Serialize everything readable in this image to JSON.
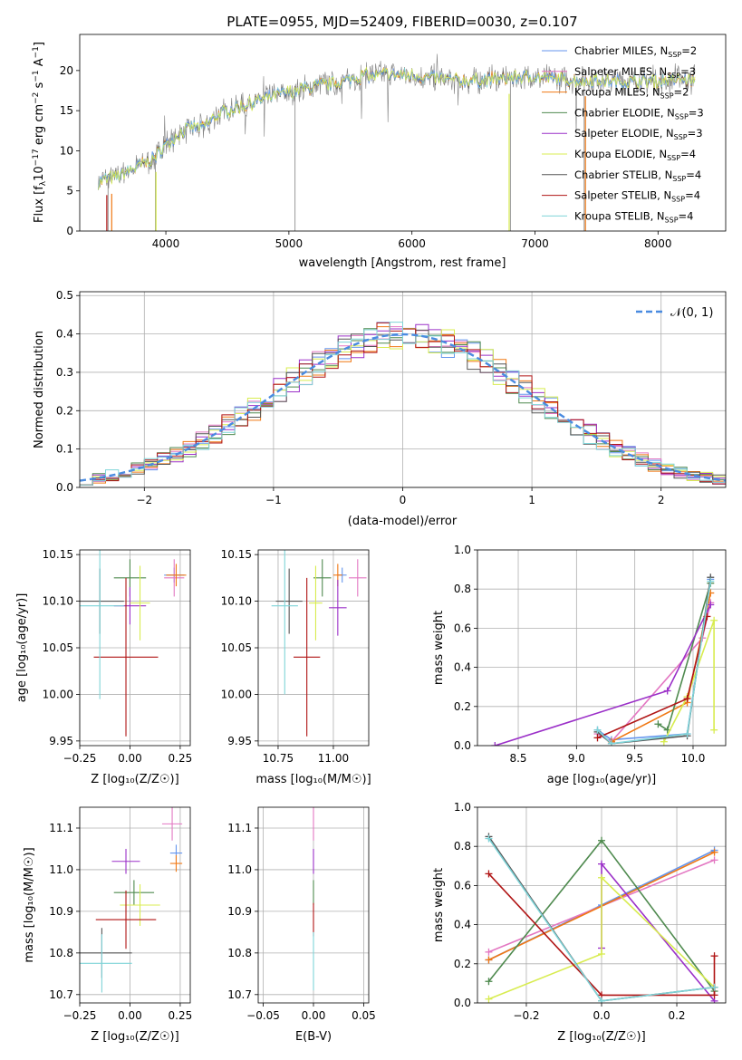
{
  "figure_title": "PLATE=0955, MJD=52409, FIBERID=0030, z=0.107",
  "colors": {
    "Chabrier MILES": "#6495ed",
    "Salpeter MILES": "#e377c2",
    "Kroupa MILES": "#f07814",
    "Chabrier ELODIE": "#4f8a4f",
    "Salpeter ELODIE": "#9b30c8",
    "Kroupa ELODIE": "#d8ec50",
    "Chabrier STELIB": "#555555",
    "Salpeter STELIB": "#b01515",
    "Kroupa STELIB": "#7fd4d8",
    "normal": "#4a8be0",
    "grid": "#b0b0b0",
    "spectrum_gray": "#808080"
  },
  "panels": {
    "spectrum": {
      "xlabel": "wavelength [Angstrom, rest frame]",
      "ylabel_parts": [
        "Flux [f",
        "λ",
        "10",
        "−17",
        " erg cm",
        "−2",
        " s",
        "−1",
        " A",
        "−1",
        "]"
      ],
      "xticks": [
        "4000",
        "5000",
        "6000",
        "7000",
        "8000"
      ],
      "yticks": [
        "0",
        "5",
        "10",
        "15",
        "20"
      ]
    },
    "hist": {
      "xlabel": "(data-model)/error",
      "ylabel": "Normed distribution",
      "xticks": [
        "−2",
        "−1",
        "0",
        "1",
        "2"
      ],
      "yticks": [
        "0.0",
        "0.1",
        "0.2",
        "0.3",
        "0.4",
        "0.5"
      ],
      "legend_label": "𝒩(0, 1)"
    },
    "age_z": {
      "xlabel": "Z [log₁₀(Z/Z☉)]",
      "ylabel": "age  [log₁₀(age/yr)]",
      "xticks": [
        "−0.25",
        "0.00",
        "0.25"
      ],
      "yticks": [
        "9.95",
        "10.00",
        "10.05",
        "10.10",
        "10.15"
      ]
    },
    "age_mass": {
      "xlabel": "mass [log₁₀(M/M☉)]",
      "xticks": [
        "10.75",
        "11.00"
      ],
      "yticks": [
        "9.95",
        "10.00",
        "10.05",
        "10.10",
        "10.15"
      ]
    },
    "mw_age": {
      "xlabel": "age  [log₁₀(age/yr)]",
      "ylabel": "mass weight",
      "xticks": [
        "8.5",
        "9.0",
        "9.5",
        "10.0"
      ],
      "yticks": [
        "0.0",
        "0.2",
        "0.4",
        "0.6",
        "0.8",
        "1.0"
      ]
    },
    "mass_z": {
      "xlabel": "Z [log₁₀(Z/Z☉)]",
      "ylabel": "mass [log₁₀(M/M☉)]",
      "xticks": [
        "−0.25",
        "0.00",
        "0.25"
      ],
      "yticks": [
        "10.7",
        "10.8",
        "10.9",
        "11.0",
        "11.1"
      ]
    },
    "mass_ebv": {
      "xlabel": "E(B-V)",
      "xticks": [
        "−0.05",
        "0.00",
        "0.05"
      ],
      "yticks": [
        "10.7",
        "10.8",
        "10.9",
        "11.0",
        "11.1"
      ]
    },
    "mw_z": {
      "xlabel": "Z [log₁₀(Z/Z☉)]",
      "ylabel": "mass weight",
      "xticks": [
        "−0.2",
        "0.0",
        "0.2"
      ],
      "yticks": [
        "0.0",
        "0.2",
        "0.4",
        "0.6",
        "0.8",
        "1.0"
      ]
    }
  },
  "chart_data": [
    {
      "type": "line",
      "title": "PLATE=0955, MJD=52409, FIBERID=0030, z=0.107",
      "xlabel": "wavelength [Angstrom, rest frame]",
      "ylabel": "Flux [fλ 10^-17 erg cm^-2 s^-1 A^-1]",
      "xlim": [
        3300,
        8550
      ],
      "ylim": [
        0,
        24.5
      ],
      "grid": false,
      "legend_position": "upper-right",
      "spectrum_shape": {
        "wavelength": [
          3450,
          3600,
          3700,
          3800,
          3900,
          4000,
          4100,
          4200,
          4300,
          4400,
          4500,
          4600,
          4800,
          5000,
          5200,
          5400,
          5600,
          5800,
          6000,
          6200,
          6400,
          6600,
          6800,
          7000,
          7200,
          7400,
          7600,
          7800,
          8000,
          8200,
          8300
        ],
        "flux": [
          6.2,
          6.8,
          7.5,
          8.2,
          9.0,
          10.8,
          12.0,
          13.0,
          12.8,
          14.2,
          15.0,
          15.5,
          16.5,
          17.3,
          18.0,
          18.5,
          19.3,
          19.5,
          19.4,
          19.0,
          18.7,
          18.9,
          19.1,
          19.2,
          18.9,
          18.8,
          18.7,
          18.6,
          18.7,
          18.9,
          18.6
        ]
      },
      "series": [
        {
          "name": "Chabrier MILES, N_SSP=2"
        },
        {
          "name": "Salpeter MILES, N_SSP=3"
        },
        {
          "name": "Kroupa MILES, N_SSP=2"
        },
        {
          "name": "Chabrier ELODIE, N_SSP=3"
        },
        {
          "name": "Salpeter ELODIE, N_SSP=3"
        },
        {
          "name": "Kroupa ELODIE, N_SSP=4"
        },
        {
          "name": "Chabrier STELIB, N_SSP=4"
        },
        {
          "name": "Salpeter STELIB, N_SSP=4"
        },
        {
          "name": "Kroupa STELIB, N_SSP=4"
        }
      ]
    },
    {
      "type": "line",
      "xlabel": "(data-model)/error",
      "ylabel": "Normed distribution",
      "xlim": [
        -2.5,
        2.5
      ],
      "ylim": [
        0,
        0.51
      ],
      "grid": true,
      "legend_position": "upper-right",
      "histogram_bins": [
        -2.5,
        -2.4,
        -2.3,
        -2.2,
        -2.1,
        -2.0,
        -1.9,
        -1.8,
        -1.7,
        -1.6,
        -1.5,
        -1.4,
        -1.3,
        -1.2,
        -1.1,
        -1.0,
        -0.9,
        -0.8,
        -0.7,
        -0.6,
        -0.5,
        -0.4,
        -0.3,
        -0.2,
        -0.1,
        0.0,
        0.1,
        0.2,
        0.3,
        0.4,
        0.5,
        0.6,
        0.7,
        0.8,
        0.9,
        1.0,
        1.1,
        1.2,
        1.3,
        1.4,
        1.5,
        1.6,
        1.7,
        1.8,
        1.9,
        2.0,
        2.1,
        2.2,
        2.3,
        2.4,
        2.5
      ],
      "series": [
        {
          "name": "𝒩(0, 1)",
          "x": [
            -2.5,
            -2.0,
            -1.5,
            -1.0,
            -0.5,
            0.0,
            0.5,
            1.0,
            1.5,
            2.0,
            2.5
          ],
          "values": [
            0.018,
            0.054,
            0.13,
            0.242,
            0.352,
            0.399,
            0.352,
            0.242,
            0.13,
            0.054,
            0.018
          ]
        }
      ]
    },
    {
      "type": "scatter",
      "xlabel": "Z [log10(Z/Z_sun)]",
      "ylabel": "age [log10(age/yr)]",
      "xlim": [
        -0.25,
        0.3
      ],
      "ylim": [
        9.945,
        10.155
      ],
      "grid": true,
      "series": [
        {
          "x": 0.22,
          "y": 10.128,
          "xerr": 0.05,
          "yerr": 0.008
        },
        {
          "x": 0.22,
          "y": 10.125,
          "xerr": 0.05,
          "yerr": 0.02
        },
        {
          "x": 0.23,
          "y": 10.128,
          "xerr": 0.05,
          "yerr": 0.012
        },
        {
          "x": 0.0,
          "y": 10.125,
          "xerr": 0.08,
          "yerr": 0.02
        },
        {
          "x": 0.0,
          "y": 10.095,
          "xerr": 0.08,
          "yerr": 0.02
        },
        {
          "x": 0.05,
          "y": 10.098,
          "xerr": 0.05,
          "yerr": 0.04
        },
        {
          "x": -0.15,
          "y": 10.1,
          "xerr": 0.12,
          "yerr": 0.035
        },
        {
          "x": -0.02,
          "y": 10.04,
          "xerr": 0.16,
          "yerr": 0.085
        },
        {
          "x": -0.15,
          "y": 10.095,
          "xerr": 0.12,
          "yerr": 0.1
        }
      ]
    },
    {
      "type": "scatter",
      "xlabel": "mass [log10(M/M_sun)]",
      "ylabel": "age [log10(age/yr)]",
      "xlim": [
        10.66,
        11.16
      ],
      "ylim": [
        9.945,
        10.155
      ],
      "grid": true,
      "series": [
        {
          "x": 11.04,
          "y": 10.128,
          "xerr": 0.02,
          "yerr": 0.008
        },
        {
          "x": 11.11,
          "y": 10.125,
          "xerr": 0.04,
          "yerr": 0.02
        },
        {
          "x": 11.02,
          "y": 10.128,
          "xerr": 0.02,
          "yerr": 0.012
        },
        {
          "x": 10.95,
          "y": 10.125,
          "xerr": 0.04,
          "yerr": 0.02
        },
        {
          "x": 11.02,
          "y": 10.093,
          "xerr": 0.04,
          "yerr": 0.03
        },
        {
          "x": 10.92,
          "y": 10.098,
          "xerr": 0.03,
          "yerr": 0.04
        },
        {
          "x": 10.8,
          "y": 10.1,
          "xerr": 0.06,
          "yerr": 0.035
        },
        {
          "x": 10.88,
          "y": 10.04,
          "xerr": 0.06,
          "yerr": 0.085
        },
        {
          "x": 10.78,
          "y": 10.095,
          "xerr": 0.06,
          "yerr": 0.095
        }
      ]
    },
    {
      "type": "line",
      "xlabel": "age [log10(age/yr)]",
      "ylabel": "mass weight",
      "xlim": [
        8.15,
        10.28
      ],
      "ylim": [
        0,
        1.0
      ],
      "grid": true,
      "series": [
        {
          "x": [
            9.18,
            9.3,
            9.95,
            10.15
          ],
          "values": [
            0.08,
            0.03,
            0.06,
            0.85
          ]
        },
        {
          "x": [
            9.18,
            9.3,
            10.08,
            10.15
          ],
          "values": [
            0.06,
            0.02,
            0.55,
            0.73
          ]
        },
        {
          "x": [
            9.3,
            9.95,
            10.15
          ],
          "values": [
            0.02,
            0.22,
            0.78
          ]
        },
        {
          "x": [
            9.7,
            9.78,
            10.15
          ],
          "values": [
            0.11,
            0.08,
            0.83
          ]
        },
        {
          "x": [
            8.3,
            9.78,
            10.15
          ],
          "values": [
            0.0,
            0.28,
            0.72
          ]
        },
        {
          "x": [
            9.75,
            9.95,
            10.18,
            10.18
          ],
          "values": [
            0.02,
            0.25,
            0.64,
            0.08
          ]
        },
        {
          "x": [
            9.18,
            9.3,
            9.95,
            10.15
          ],
          "values": [
            0.07,
            0.01,
            0.05,
            0.86
          ]
        },
        {
          "x": [
            9.18,
            9.95,
            10.12
          ],
          "values": [
            0.04,
            0.24,
            0.66
          ]
        },
        {
          "x": [
            9.18,
            9.3,
            9.95,
            10.15
          ],
          "values": [
            0.08,
            0.01,
            0.06,
            0.84
          ]
        }
      ]
    },
    {
      "type": "scatter",
      "xlabel": "Z [log10(Z/Z_sun)]",
      "ylabel": "mass [log10(M/M_sun)]",
      "xlim": [
        -0.25,
        0.3
      ],
      "ylim": [
        10.68,
        11.15
      ],
      "grid": true,
      "series": [
        {
          "x": 0.23,
          "y": 11.04,
          "xerr": 0.03,
          "yerr": 0.02
        },
        {
          "x": 0.21,
          "y": 11.11,
          "xerr": 0.05,
          "yerr": 0.04
        },
        {
          "x": 0.23,
          "y": 11.015,
          "xerr": 0.03,
          "yerr": 0.02
        },
        {
          "x": 0.02,
          "y": 10.945,
          "xerr": 0.1,
          "yerr": 0.03
        },
        {
          "x": -0.02,
          "y": 11.02,
          "xerr": 0.07,
          "yerr": 0.03
        },
        {
          "x": 0.05,
          "y": 10.915,
          "xerr": 0.1,
          "yerr": 0.05
        },
        {
          "x": -0.14,
          "y": 10.8,
          "xerr": 0.15,
          "yerr": 0.06
        },
        {
          "x": -0.02,
          "y": 10.88,
          "xerr": 0.15,
          "yerr": 0.07
        },
        {
          "x": -0.14,
          "y": 10.775,
          "xerr": 0.15,
          "yerr": 0.07
        }
      ]
    },
    {
      "type": "scatter",
      "xlabel": "E(B-V)",
      "ylabel": "mass [log10(M/M_sun)]",
      "xlim": [
        -0.055,
        0.055
      ],
      "ylim": [
        10.68,
        11.15
      ],
      "grid": true,
      "series": [
        {
          "x": 0.0,
          "y": 11.11,
          "xerr": 0.0,
          "yerr": 0.04
        },
        {
          "x": 0.0,
          "y": 11.02,
          "xerr": 0.0,
          "yerr": 0.03
        },
        {
          "x": 0.0,
          "y": 10.945,
          "xerr": 0.0,
          "yerr": 0.03
        },
        {
          "x": 0.0,
          "y": 10.88,
          "xerr": 0.0,
          "yerr": 0.04
        },
        {
          "x": 0.0,
          "y": 10.78,
          "xerr": 0.0,
          "yerr": 0.07
        }
      ]
    },
    {
      "type": "line",
      "xlabel": "Z [log10(Z/Z_sun)]",
      "ylabel": "mass weight",
      "xlim": [
        -0.33,
        0.33
      ],
      "ylim": [
        0,
        1.0
      ],
      "grid": true,
      "series": [
        {
          "x": [
            -0.3,
            0.0,
            0.3
          ],
          "values": [
            0.22,
            0.5,
            0.78
          ]
        },
        {
          "x": [
            -0.3,
            0.3
          ],
          "values": [
            0.26,
            0.73
          ]
        },
        {
          "x": [
            -0.3,
            0.3
          ],
          "values": [
            0.22,
            0.77
          ]
        },
        {
          "x": [
            -0.3,
            0.0,
            0.3
          ],
          "values": [
            0.11,
            0.83,
            0.06
          ]
        },
        {
          "x": [
            0.0,
            0.0,
            0.3
          ],
          "values": [
            0.28,
            0.71,
            0.01
          ]
        },
        {
          "x": [
            -0.3,
            0.0,
            0.0,
            0.3
          ],
          "values": [
            0.02,
            0.25,
            0.64,
            0.08
          ]
        },
        {
          "x": [
            -0.3,
            0.0,
            0.3
          ],
          "values": [
            0.85,
            0.01,
            0.08
          ]
        },
        {
          "x": [
            -0.3,
            0.0,
            0.3,
            0.3
          ],
          "values": [
            0.66,
            0.04,
            0.04,
            0.24
          ]
        },
        {
          "x": [
            -0.3,
            0.0,
            0.3
          ],
          "values": [
            0.84,
            0.01,
            0.08
          ]
        }
      ]
    }
  ]
}
